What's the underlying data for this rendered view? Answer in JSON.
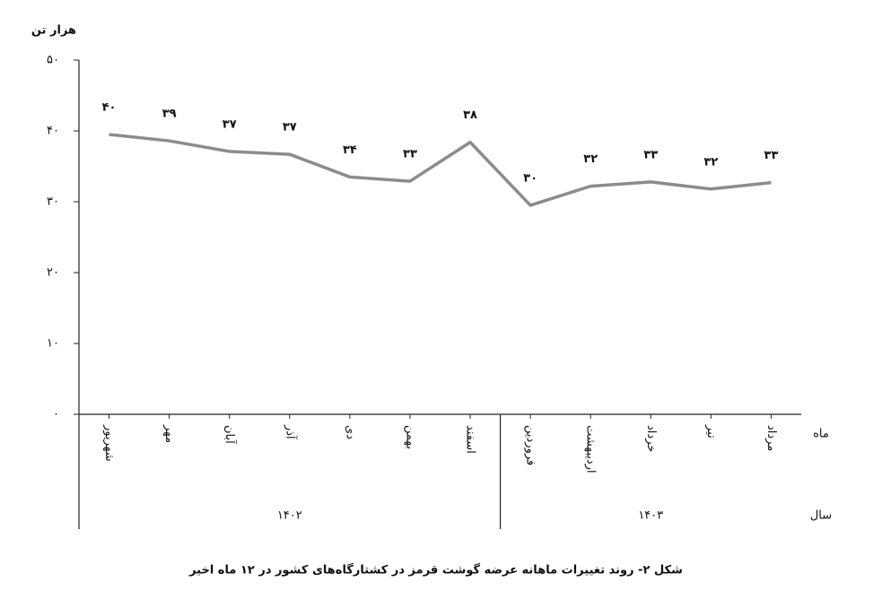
{
  "chart_data": {
    "type": "line",
    "title": "شکل ۲- روند تغییرات ماهانه عرضه گوشت قرمز در کشتارگاه‌های کشور در ۱۲ ماه اخیر",
    "y_label": "هزار تن",
    "x_row_label": "ماه",
    "group_row_label": "سال",
    "categories": [
      "شهریور",
      "مهر",
      "آبان",
      "آذر",
      "دی",
      "بهمن",
      "اسفند",
      "فروردین",
      "اردیبهشت",
      "خرداد",
      "تیر",
      "مرداد"
    ],
    "groups": [
      {
        "label": "۱۴۰۲",
        "size": 7
      },
      {
        "label": "۱۴۰۳",
        "size": 5
      }
    ],
    "series": [
      {
        "name": "عرضه گوشت قرمز",
        "color": "#8c8c8c",
        "values": [
          39.5,
          38.6,
          37.1,
          36.7,
          33.5,
          32.9,
          38.4,
          29.5,
          32.2,
          32.8,
          31.8,
          32.7
        ],
        "value_labels": [
          "۴۰",
          "۳۹",
          "۳۷",
          "۳۷",
          "۳۴",
          "۳۳",
          "۳۸",
          "۳۰",
          "۳۲",
          "۳۳",
          "۳۲",
          "۳۳"
        ]
      }
    ],
    "ylim": [
      0,
      50
    ],
    "yticks": [
      {
        "value": 0,
        "label": "۰"
      },
      {
        "value": 10,
        "label": "۱۰"
      },
      {
        "value": 20,
        "label": "۲۰"
      },
      {
        "value": 30,
        "label": "۳۰"
      },
      {
        "value": 40,
        "label": "۴۰"
      },
      {
        "value": 50,
        "label": "۵۰"
      }
    ]
  }
}
